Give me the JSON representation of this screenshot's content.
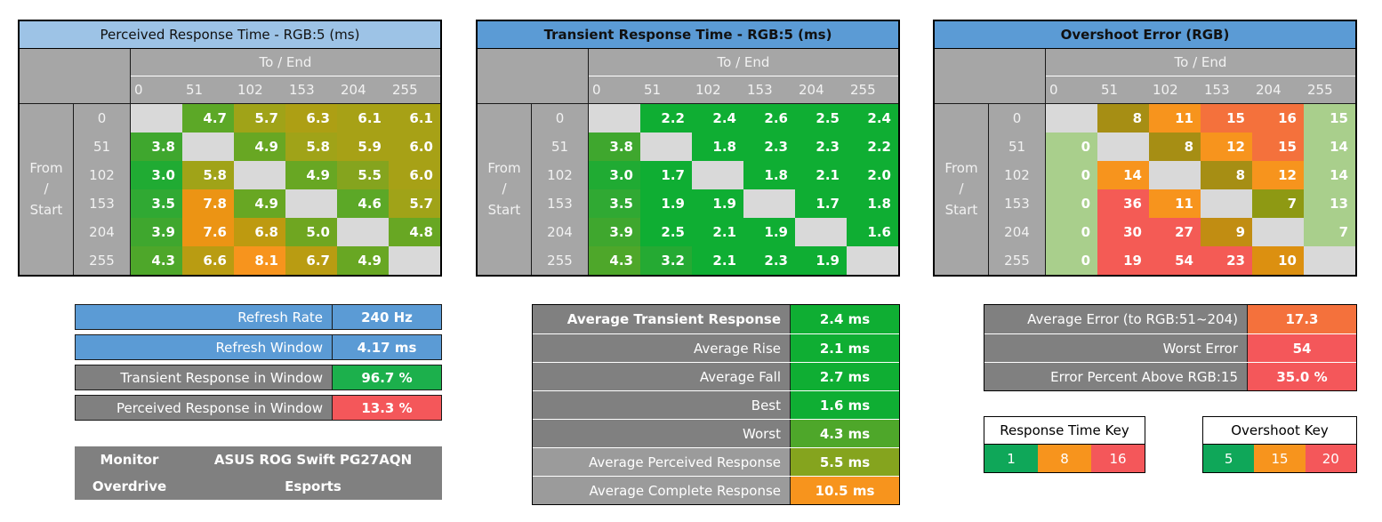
{
  "style": {
    "header_gray": "#A6A6A6",
    "blank_cell_gray": "#D9D9D9",
    "label_dark_gray": "#808080",
    "label_mid_gray": "#9B9B9B",
    "accent_blue": "#5B9BD5",
    "accent_light_blue": "#9DC3E6",
    "good_green": "#1CB04C",
    "bad_red": "#F4575A",
    "warn_orange": "#F7941D"
  },
  "chart_data": {
    "type": "heatmap",
    "tables": [
      {
        "id": "perceived-response",
        "title": "Perceived Response Time - RGB:5 (ms)",
        "title_bg": "#9DC3E6",
        "title_bold": false,
        "col_group_label": "To / End",
        "row_group_lines": [
          "From",
          "/",
          "Start"
        ],
        "columns": [
          "0",
          "51",
          "102",
          "153",
          "204",
          "255"
        ],
        "rows": [
          "0",
          "51",
          "102",
          "153",
          "204",
          "255"
        ],
        "decimals": 1,
        "values": [
          [
            null,
            4.7,
            5.7,
            6.3,
            6.1,
            6.1
          ],
          [
            3.8,
            null,
            4.9,
            5.8,
            5.9,
            6.0
          ],
          [
            3.0,
            5.8,
            null,
            4.9,
            5.5,
            6.0
          ],
          [
            3.5,
            7.8,
            4.9,
            null,
            4.6,
            5.7
          ],
          [
            3.9,
            7.6,
            6.8,
            5.0,
            null,
            4.8
          ],
          [
            4.3,
            6.6,
            8.1,
            6.7,
            4.9,
            null
          ]
        ],
        "cell_colors": [
          [
            null,
            "#5CA827",
            "#A0A318",
            "#AD9F14",
            "#A7A116",
            "#A7A116"
          ],
          [
            "#3FA72E",
            null,
            "#68A723",
            "#A0A318",
            "#A7A116",
            "#A7A116"
          ],
          [
            "#20AB33",
            "#A0A318",
            null,
            "#68A723",
            "#85A41E",
            "#A7A116"
          ],
          [
            "#30A933",
            "#EC9414",
            "#68A723",
            null,
            "#5CA827",
            "#A0A318"
          ],
          [
            "#3FA72E",
            "#EC9414",
            "#BE9A10",
            "#6FA621",
            null,
            "#68A723"
          ],
          [
            "#4EA72A",
            "#B99C12",
            "#F7941D",
            "#B99C12",
            "#68A723",
            null
          ]
        ]
      },
      {
        "id": "transient-response",
        "title": "Transient Response Time - RGB:5 (ms)",
        "title_bg": "#5B9BD5",
        "title_bold": true,
        "col_group_label": "To / End",
        "row_group_lines": [
          "From",
          "/",
          "Start"
        ],
        "columns": [
          "0",
          "51",
          "102",
          "153",
          "204",
          "255"
        ],
        "rows": [
          "0",
          "51",
          "102",
          "153",
          "204",
          "255"
        ],
        "decimals": 1,
        "values": [
          [
            null,
            2.2,
            2.4,
            2.6,
            2.5,
            2.4
          ],
          [
            3.8,
            null,
            1.8,
            2.3,
            2.3,
            2.2
          ],
          [
            3.0,
            1.7,
            null,
            1.8,
            2.1,
            2.0
          ],
          [
            3.5,
            1.9,
            1.9,
            null,
            1.7,
            1.8
          ],
          [
            3.9,
            2.5,
            2.1,
            1.9,
            null,
            1.6
          ],
          [
            4.3,
            3.2,
            2.1,
            2.3,
            1.9,
            null
          ]
        ],
        "cell_colors": [
          [
            null,
            "#0FAE33",
            "#0FAE33",
            "#0FAE33",
            "#0FAE33",
            "#0FAE33"
          ],
          [
            "#3FA72E",
            null,
            "#0FAE33",
            "#0FAE33",
            "#0FAE33",
            "#0FAE33"
          ],
          [
            "#20AB33",
            "#0FAE33",
            null,
            "#0FAE33",
            "#0FAE33",
            "#0FAE33"
          ],
          [
            "#30A933",
            "#0FAE33",
            "#0FAE33",
            null,
            "#0FAE33",
            "#0FAE33"
          ],
          [
            "#3FA72E",
            "#0FAE33",
            "#0FAE33",
            "#0FAE33",
            null,
            "#0FAE33"
          ],
          [
            "#4EA72A",
            "#25AA33",
            "#0FAE33",
            "#0FAE33",
            "#0FAE33",
            null
          ]
        ]
      },
      {
        "id": "overshoot-error",
        "title": "Overshoot Error (RGB)",
        "title_bg": "#5B9BD5",
        "title_bold": true,
        "col_group_label": "To / End",
        "row_group_lines": [
          "From",
          "/",
          "Start"
        ],
        "columns": [
          "0",
          "51",
          "102",
          "153",
          "204",
          "255"
        ],
        "rows": [
          "0",
          "51",
          "102",
          "153",
          "204",
          "255"
        ],
        "decimals": 0,
        "values": [
          [
            null,
            8,
            11,
            15,
            16,
            15
          ],
          [
            0,
            null,
            8,
            12,
            15,
            14
          ],
          [
            0,
            14,
            null,
            8,
            12,
            14
          ],
          [
            0,
            36,
            11,
            null,
            7,
            13
          ],
          [
            0,
            30,
            27,
            9,
            null,
            7
          ],
          [
            0,
            19,
            54,
            23,
            10,
            null
          ]
        ],
        "cell_colors": [
          [
            null,
            "#A68E14",
            "#F7941D",
            "#F4713C",
            "#F4713C",
            "#A9CF8C"
          ],
          [
            "#A9CF8C",
            null,
            "#A68E14",
            "#F7941D",
            "#F4713C",
            "#A9CF8C"
          ],
          [
            "#A9CF8C",
            "#F7941D",
            null,
            "#A68E14",
            "#F7941D",
            "#A9CF8C"
          ],
          [
            "#A9CF8C",
            "#F45B55",
            "#F7941D",
            null,
            "#8E9913",
            "#A9CF8C"
          ],
          [
            "#A9CF8C",
            "#F45B55",
            "#F45B55",
            "#C18D12",
            null,
            "#A9CF8C"
          ],
          [
            "#A9CF8C",
            "#F45B55",
            "#F45B55",
            "#F45B55",
            "#DC9010",
            null
          ]
        ]
      }
    ]
  },
  "summary_refresh": {
    "rows": [
      {
        "label": "Refresh Rate",
        "value": "240 Hz",
        "label_bg": "#5B9BD5",
        "value_bg": "#5B9BD5"
      },
      {
        "label": "Refresh Window",
        "value": "4.17 ms",
        "label_bg": "#5B9BD5",
        "value_bg": "#5B9BD5"
      },
      {
        "label": "Transient Response in Window",
        "value": "96.7 %",
        "label_bg": "#808080",
        "value_bg": "#1CB04C"
      },
      {
        "label": "Perceived Response in Window",
        "value": "13.3 %",
        "label_bg": "#808080",
        "value_bg": "#F4575A"
      }
    ]
  },
  "monitor_info": {
    "rows": [
      {
        "label": "Monitor",
        "value": "ASUS ROG Swift PG27AQN"
      },
      {
        "label": "Overdrive",
        "value": "Esports"
      }
    ]
  },
  "summary_transient": {
    "rows": [
      {
        "label": "Average Transient Response",
        "value": "2.4 ms",
        "label_bg": "#808080",
        "value_bg": "#0FAE33",
        "label_bold": true
      },
      {
        "label": "Average Rise",
        "value": "2.1 ms",
        "label_bg": "#808080",
        "value_bg": "#0FAE33"
      },
      {
        "label": "Average Fall",
        "value": "2.7 ms",
        "label_bg": "#808080",
        "value_bg": "#0FAE33"
      },
      {
        "label": "Best",
        "value": "1.6 ms",
        "label_bg": "#808080",
        "value_bg": "#0FAE33"
      },
      {
        "label": "Worst",
        "value": "4.3 ms",
        "label_bg": "#808080",
        "value_bg": "#4EA72A"
      },
      {
        "label": "Average Perceived Response",
        "value": "5.5 ms",
        "label_bg": "#9B9B9B",
        "value_bg": "#85A41E"
      },
      {
        "label": "Average Complete Response",
        "value": "10.5 ms",
        "label_bg": "#9B9B9B",
        "value_bg": "#F7941D"
      }
    ]
  },
  "summary_overshoot": {
    "rows": [
      {
        "label": "Average Error (to RGB:51~204)",
        "value": "17.3",
        "label_bg": "#808080",
        "value_bg": "#F4713C"
      },
      {
        "label": "Worst Error",
        "value": "54",
        "label_bg": "#808080",
        "value_bg": "#F4575A"
      },
      {
        "label": "Error Percent Above RGB:15",
        "value": "35.0 %",
        "label_bg": "#808080",
        "value_bg": "#F4575A"
      }
    ]
  },
  "keys": [
    {
      "title": "Response Time Key",
      "stops": [
        {
          "label": "1",
          "color": "#0FA759"
        },
        {
          "label": "8",
          "color": "#F7941D"
        },
        {
          "label": "16",
          "color": "#F4575A"
        }
      ]
    },
    {
      "title": "Overshoot Key",
      "stops": [
        {
          "label": "5",
          "color": "#0FA759"
        },
        {
          "label": "15",
          "color": "#F7941D"
        },
        {
          "label": "20",
          "color": "#F4575A"
        }
      ]
    }
  ]
}
